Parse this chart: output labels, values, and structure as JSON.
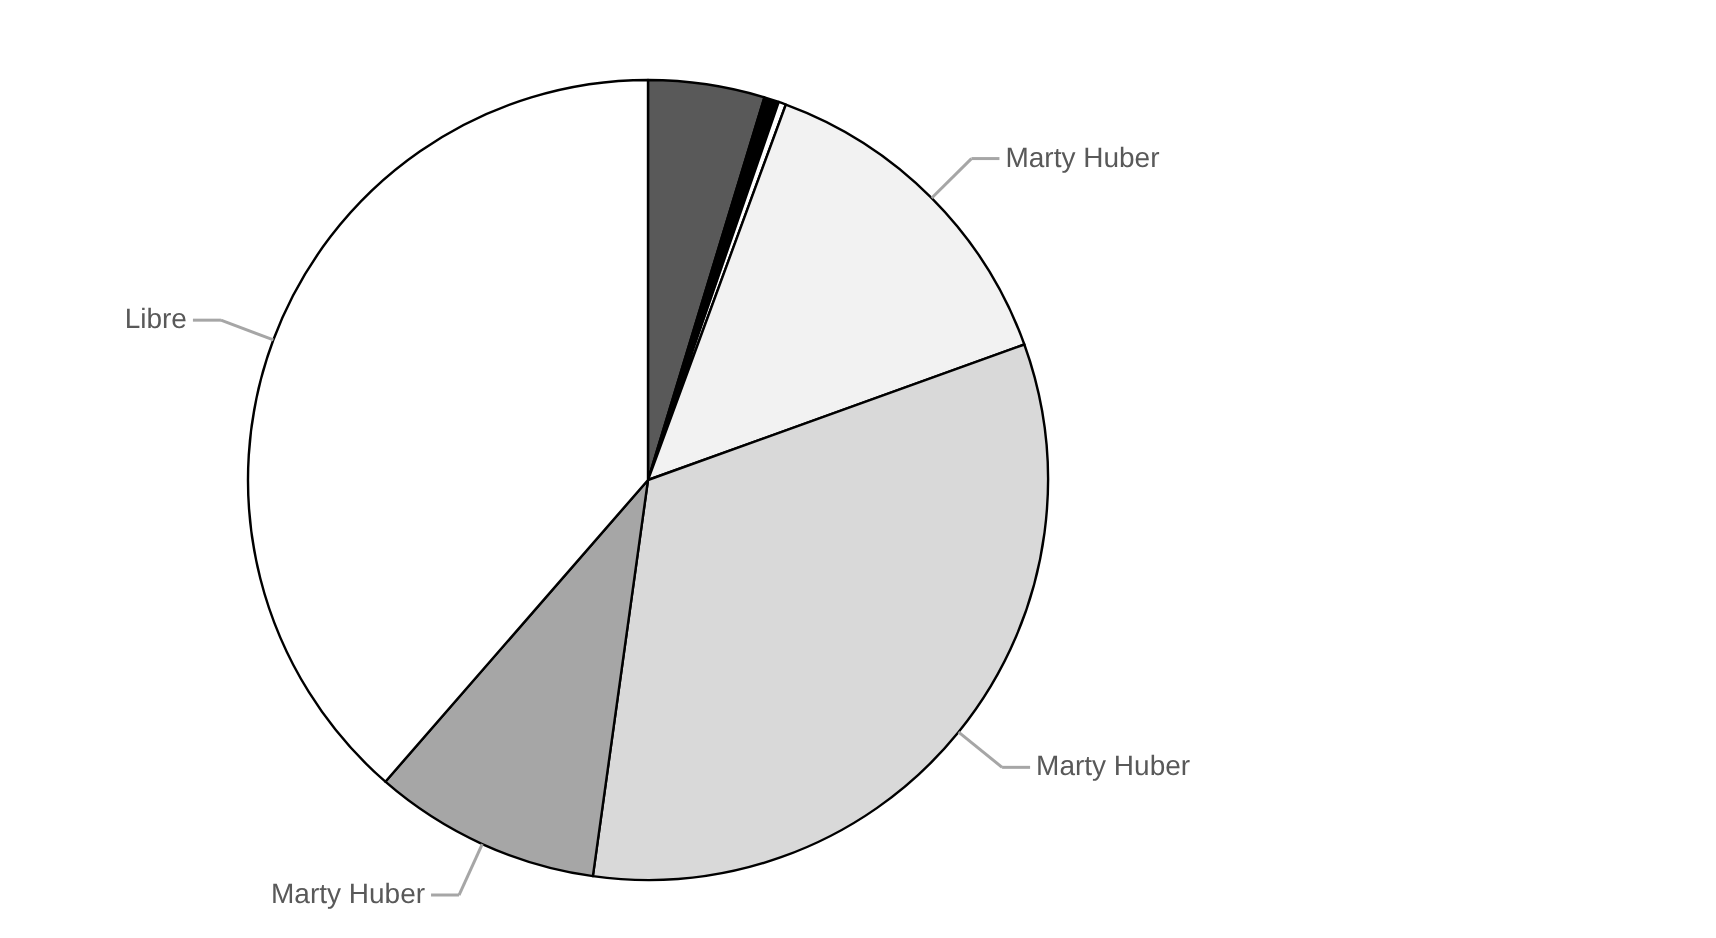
{
  "chart_data": {
    "type": "pie",
    "categories": [
      null,
      null,
      null,
      "Marty Huber",
      "Marty Huber",
      "Marty Huber",
      "Libre"
    ],
    "values": [
      4.7,
      0.6,
      0.3,
      13.9,
      32.7,
      9.2,
      38.6
    ],
    "colors": [
      "#595959",
      "#000000",
      "#ffffff",
      "#f2f2f2",
      "#d9d9d9",
      "#a6a6a6",
      "#ffffff"
    ]
  }
}
